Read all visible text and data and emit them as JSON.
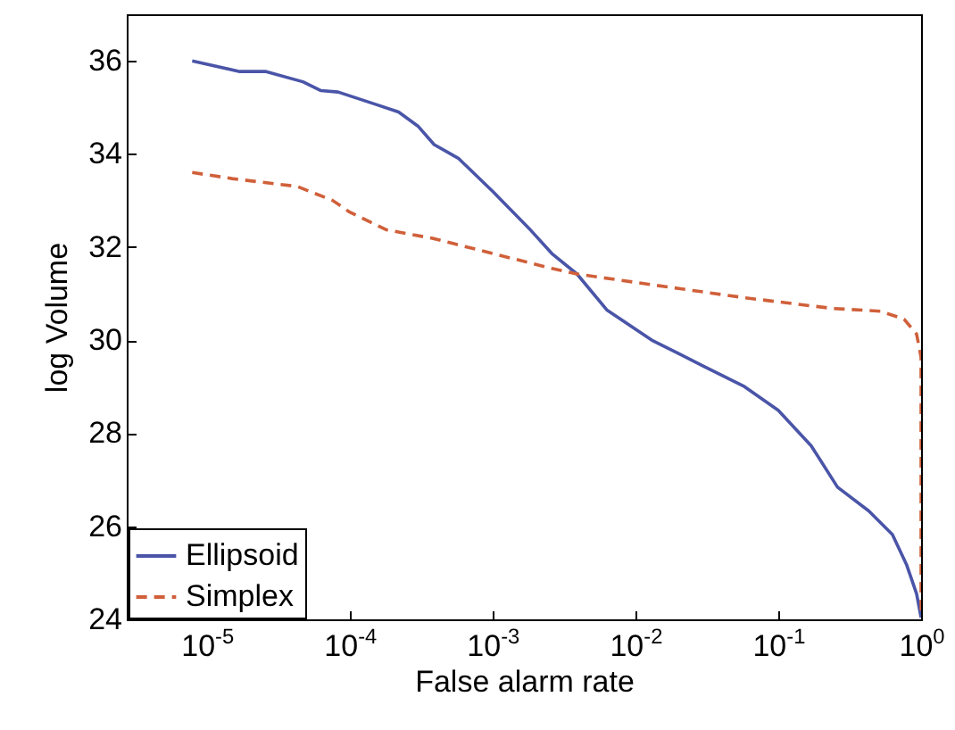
{
  "chart_data": {
    "type": "line",
    "xlabel": "False alarm rate",
    "ylabel": "log Volume",
    "log": "x",
    "xlim": [
      2.75e-06,
      1
    ],
    "ylim": [
      24,
      37
    ],
    "xticks": [
      {
        "value": 1e-05,
        "label": "10$^{-5}$"
      },
      {
        "value": 0.0001,
        "label": "10$^{-4}$"
      },
      {
        "value": 0.001,
        "label": "10$^{-3}$"
      },
      {
        "value": 0.01,
        "label": "10$^{-2}$"
      },
      {
        "value": 0.1,
        "label": "10$^{-1}$"
      },
      {
        "value": 1,
        "label": "10$^{0}$"
      }
    ],
    "yticks": [
      24,
      26,
      28,
      30,
      32,
      34,
      36
    ],
    "grid": false,
    "legend": "bottom left",
    "series": [
      {
        "name": "Ellipsoid",
        "color": "#4a55a8",
        "line_style": "solid",
        "x": [
          7.9e-06,
          1.7e-05,
          2.6e-05,
          4.7e-05,
          6.3e-05,
          8.3e-05,
          0.00015,
          0.00022,
          0.0003,
          0.00039,
          0.00058,
          0.001,
          0.0018,
          0.0026,
          0.0039,
          0.0063,
          0.013,
          0.03,
          0.058,
          0.1,
          0.17,
          0.26,
          0.43,
          0.63,
          0.79,
          0.93,
          1
        ],
        "values": [
          36.0,
          35.77,
          35.77,
          35.55,
          35.36,
          35.33,
          35.07,
          34.9,
          34.6,
          34.2,
          33.9,
          33.2,
          32.4,
          31.86,
          31.42,
          30.65,
          30.0,
          29.44,
          29.0,
          28.49,
          27.73,
          26.84,
          26.33,
          25.82,
          25.18,
          24.55,
          24.04
        ]
      },
      {
        "name": "Simplex",
        "color": "#d0603a",
        "line_style": "dashed",
        "x": [
          7.9e-06,
          1.5e-05,
          4.3e-05,
          7.6e-05,
          0.0001,
          0.00018,
          0.00039,
          0.001,
          0.0026,
          0.0039,
          0.013,
          0.058,
          0.24,
          0.52,
          0.76,
          0.93,
          1,
          1
        ],
        "values": [
          33.6,
          33.47,
          33.3,
          33.0,
          32.75,
          32.37,
          32.18,
          31.86,
          31.54,
          31.42,
          31.19,
          30.91,
          30.68,
          30.62,
          30.45,
          30.13,
          29.63,
          24.04
        ]
      }
    ]
  }
}
